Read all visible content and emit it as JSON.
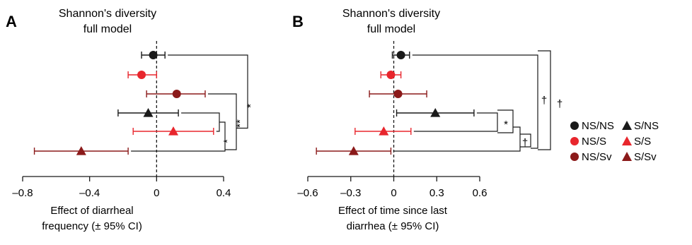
{
  "colors": {
    "NS": "#1a1a1a",
    "S": "#e8262d",
    "Sv": "#8b1a1a"
  },
  "legend": {
    "entries": [
      {
        "label": "NS/NS",
        "shape": "circle",
        "color": "#1a1a1a"
      },
      {
        "label": "S/NS",
        "shape": "triangle",
        "color": "#1a1a1a"
      },
      {
        "label": "NS/S",
        "shape": "circle",
        "color": "#e8262d"
      },
      {
        "label": "S/S",
        "shape": "triangle",
        "color": "#e8262d"
      },
      {
        "label": "NS/Sv",
        "shape": "circle",
        "color": "#8b1a1a"
      },
      {
        "label": "S/Sv",
        "shape": "triangle",
        "color": "#8b1a1a"
      }
    ]
  },
  "chart_data": [
    {
      "type": "scatter",
      "panel": "A",
      "title_line1": "Shannon's diversity",
      "title_line2": "full model",
      "xlabel_line1": "Effect of diarrheal",
      "xlabel_line2": "frequency (± 95% CI)",
      "xlim": [
        -0.8,
        0.4
      ],
      "xticks": [
        -0.8,
        -0.4,
        0,
        0.4
      ],
      "xtick_labels": [
        "–0.8",
        "–0.4",
        "0",
        "0.4"
      ],
      "reference_line": 0,
      "points": [
        {
          "group": "NS/NS",
          "shape": "circle",
          "color": "#1a1a1a",
          "estimate": -0.02,
          "ci": [
            -0.09,
            0.05
          ]
        },
        {
          "group": "NS/S",
          "shape": "circle",
          "color": "#e8262d",
          "estimate": -0.09,
          "ci": [
            -0.17,
            0.0
          ]
        },
        {
          "group": "NS/Sv",
          "shape": "circle",
          "color": "#8b1a1a",
          "estimate": 0.12,
          "ci": [
            -0.06,
            0.29
          ]
        },
        {
          "group": "S/NS",
          "shape": "triangle",
          "color": "#1a1a1a",
          "estimate": -0.05,
          "ci": [
            -0.23,
            0.13
          ]
        },
        {
          "group": "S/S",
          "shape": "triangle",
          "color": "#e8262d",
          "estimate": 0.1,
          "ci": [
            -0.14,
            0.34
          ]
        },
        {
          "group": "S/Sv",
          "shape": "triangle",
          "color": "#8b1a1a",
          "estimate": -0.45,
          "ci": [
            -0.73,
            -0.17
          ]
        }
      ],
      "comparisons": [
        {
          "from": "NS/Sv",
          "to": "S/Sv",
          "label": "*"
        },
        {
          "from": "NS/NS",
          "to": "S/Sv",
          "label": "*"
        },
        {
          "from": "S/NS",
          "to": "S/Sv",
          "label": ""
        },
        {
          "from": "S/S",
          "to": "S/Sv",
          "label": ""
        }
      ],
      "outer_label": "*",
      "mid_label": "**"
    },
    {
      "type": "scatter",
      "panel": "B",
      "title_line1": "Shannon's diversity",
      "title_line2": "full model",
      "xlabel_line1": "Effect of time since last",
      "xlabel_line2": "diarrhea (± 95% CI)",
      "xlim": [
        -0.6,
        0.6
      ],
      "xticks": [
        -0.6,
        -0.3,
        0,
        0.3,
        0.6
      ],
      "xtick_labels": [
        "–0.6",
        "–0.3",
        "0",
        "0.3",
        "0.6"
      ],
      "reference_line": 0,
      "points": [
        {
          "group": "NS/NS",
          "shape": "circle",
          "color": "#1a1a1a",
          "estimate": 0.05,
          "ci": [
            -0.01,
            0.11
          ]
        },
        {
          "group": "NS/S",
          "shape": "circle",
          "color": "#e8262d",
          "estimate": -0.02,
          "ci": [
            -0.09,
            0.05
          ]
        },
        {
          "group": "NS/Sv",
          "shape": "circle",
          "color": "#8b1a1a",
          "estimate": 0.03,
          "ci": [
            -0.17,
            0.23
          ]
        },
        {
          "group": "S/NS",
          "shape": "triangle",
          "color": "#1a1a1a",
          "estimate": 0.29,
          "ci": [
            0.02,
            0.56
          ]
        },
        {
          "group": "S/S",
          "shape": "triangle",
          "color": "#e8262d",
          "estimate": -0.07,
          "ci": [
            -0.27,
            0.12
          ]
        },
        {
          "group": "S/Sv",
          "shape": "triangle",
          "color": "#8b1a1a",
          "estimate": -0.28,
          "ci": [
            -0.54,
            -0.02
          ]
        }
      ],
      "labels": {
        "inner_star": "*",
        "inner_dagger": "†",
        "outer_dagger_1": "†",
        "outer_dagger_2": "†"
      }
    }
  ]
}
